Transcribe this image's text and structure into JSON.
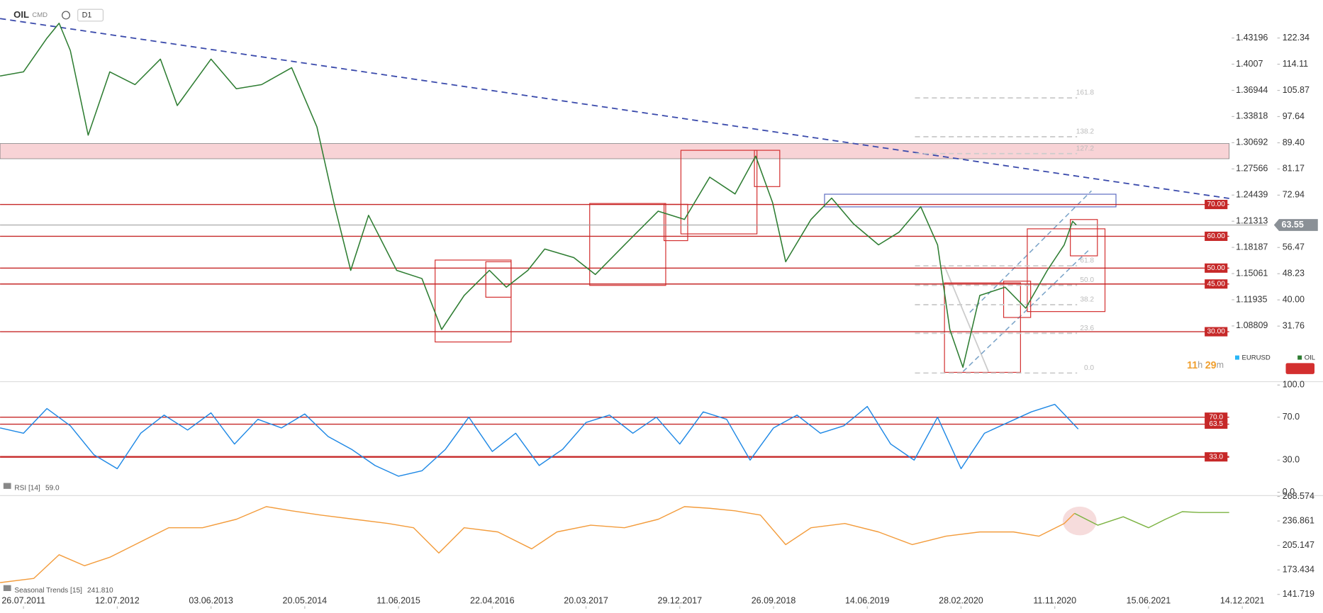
{
  "header": {
    "symbol": "OIL",
    "market": "CMD",
    "interval": "D1",
    "timer": [
      "11",
      "h",
      "29",
      "m"
    ]
  },
  "chart_data": [
    {
      "type": "line",
      "xlim": [
        -0.25,
        12.86
      ],
      "ylim": [
        14.83,
        134.29
      ],
      "yticks": [
        122.34,
        114.11,
        105.87,
        97.64,
        {
          "value": 89.4,
          "label": "89.40"
        },
        81.17,
        72.94,
        56.47,
        48.23,
        {
          "value": 40,
          "label": "40.00"
        },
        31.76
      ],
      "y2lim": [
        1.02358,
        1.47734
      ],
      "y2ticks": [
        1.43196,
        1.4007,
        1.36944,
        1.33818,
        1.30692,
        1.27566,
        1.24439,
        1.21313,
        1.18187,
        1.15061,
        1.11935,
        1.08809
      ],
      "series": [
        {
          "name": "OIL",
          "color": "#2e7d32",
          "x": [
            -0.25,
            0,
            0.25,
            0.38,
            0.5,
            0.69,
            0.92,
            1.19,
            1.46,
            1.64,
            2.0,
            2.27,
            2.54,
            2.86,
            3.13,
            3.31,
            3.49,
            3.68,
            3.98,
            4.25,
            4.46,
            4.7,
            4.97,
            5.15,
            5.38,
            5.56,
            5.87,
            6.1,
            6.41,
            6.77,
            7.05,
            7.32,
            7.59,
            7.81,
            7.99,
            8.13,
            8.4,
            8.62,
            8.85,
            9.12,
            9.34,
            9.57,
            9.75,
            9.88,
            10.02,
            10.2,
            10.47,
            10.69,
            10.92,
            11.1,
            11.19,
            11.23
          ],
          "values": [
            110.4,
            111.7,
            122.3,
            127,
            118.4,
            91.8,
            111.7,
            107.7,
            115.7,
            101.1,
            115.7,
            106.4,
            107.7,
            113.0,
            94.4,
            70.6,
            49.3,
            66.6,
            49.3,
            46.7,
            30.7,
            41.4,
            49.3,
            44.0,
            49.3,
            56.0,
            53.3,
            48.0,
            57.3,
            67.9,
            65.3,
            78.6,
            73.3,
            85.2,
            70.6,
            52.0,
            65.3,
            72.0,
            64.0,
            57.3,
            61.3,
            69.3,
            57.3,
            30.7,
            18.8,
            41.4,
            44.0,
            37.4,
            49.3,
            57.3,
            64.7,
            63.55
          ]
        }
      ],
      "overlay": {
        "name": "EURUSD",
        "color": "#29b6f6"
      },
      "current": 63.55,
      "levels": [
        {
          "value": 70,
          "label": "70.00"
        },
        {
          "value": 60,
          "label": "60.00"
        },
        {
          "value": 50,
          "label": "50.00"
        },
        {
          "value": 45,
          "label": "45.00"
        },
        {
          "value": 30,
          "label": "30.00"
        }
      ],
      "level_color": "#c62828",
      "fib_levels": [
        {
          "value": 103.5,
          "label": "161.8"
        },
        {
          "value": 91.3,
          "label": "138.2"
        },
        {
          "value": 86.0,
          "label": "127.2"
        },
        {
          "value": 50.7,
          "label": "61.8"
        },
        {
          "value": 44.6,
          "label": "50.0"
        },
        {
          "value": 38.5,
          "label": "38.2"
        },
        {
          "value": 29.5,
          "label": "23.6"
        },
        {
          "value": 17.0,
          "label": "0.0"
        }
      ]
    },
    {
      "type": "line",
      "title": "RSI [14]",
      "current": {
        "value": 59,
        "label": "59.0"
      },
      "xlim": [
        -0.25,
        12.86
      ],
      "ylim": [
        0,
        100
      ],
      "yticks": [
        {
          "value": 100,
          "label": "100.0"
        },
        {
          "value": 70,
          "label": "70.0"
        },
        {
          "value": 30,
          "label": "30.0"
        },
        {
          "value": 0,
          "label": "0.0"
        }
      ],
      "levels": [
        {
          "value": 70,
          "label": "70.0"
        },
        {
          "value": 63.5,
          "label": "63.5"
        },
        {
          "value": 33,
          "label": "33.0"
        }
      ],
      "level_color": "#c62828",
      "series": [
        {
          "color": "#1e88e5",
          "x": [
            -0.25,
            0,
            0.25,
            0.5,
            0.75,
            1,
            1.25,
            1.5,
            1.75,
            2,
            2.25,
            2.5,
            2.75,
            3,
            3.25,
            3.5,
            3.75,
            4,
            4.25,
            4.5,
            4.75,
            5,
            5.25,
            5.5,
            5.75,
            6,
            6.25,
            6.5,
            6.75,
            7,
            7.25,
            7.5,
            7.75,
            8,
            8.25,
            8.5,
            8.75,
            9,
            9.25,
            9.5,
            9.75,
            10,
            10.25,
            10.5,
            10.75,
            11,
            11.25
          ],
          "values": [
            60,
            55,
            78,
            62,
            35,
            22,
            55,
            72,
            58,
            74,
            45,
            68,
            60,
            73,
            52,
            40,
            25,
            15,
            20,
            40,
            70,
            38,
            55,
            25,
            40,
            65,
            72,
            55,
            70,
            45,
            75,
            68,
            30,
            60,
            72,
            55,
            62,
            80,
            45,
            30,
            70,
            22,
            55,
            65,
            75,
            82,
            59
          ]
        }
      ]
    },
    {
      "type": "line",
      "title": "Seasonal  Trends [15]",
      "current": {
        "value": 241.81,
        "label": "241.810"
      },
      "xlim": [
        -0.25,
        12.86
      ],
      "ylim": [
        126.4,
        270.76
      ],
      "yticks": [
        268.574,
        236.861,
        205.147,
        173.434,
        141.719
      ],
      "xticks": [
        {
          "value": 0,
          "label": "26.07.2011"
        },
        {
          "value": 1,
          "label": "12.07.2012"
        },
        {
          "value": 2,
          "label": "03.06.2013"
        },
        {
          "value": 3,
          "label": "20.05.2014"
        },
        {
          "value": 4,
          "label": "11.06.2015"
        },
        {
          "value": 5,
          "label": "22.04.2016"
        },
        {
          "value": 6,
          "label": "20.03.2017"
        },
        {
          "value": 7,
          "label": "29.12.2017"
        },
        {
          "value": 8,
          "label": "26.09.2018"
        },
        {
          "value": 9,
          "label": "14.06.2019"
        },
        {
          "value": 10,
          "label": "28.02.2020"
        },
        {
          "value": 11,
          "label": "11.11.2020"
        },
        {
          "value": 12,
          "label": "15.06.2021"
        },
        {
          "value": 13,
          "label": "14.12.2021"
        }
      ],
      "series": [
        {
          "color": "#f39c3c",
          "x": [
            -0.25,
            0.11,
            0.38,
            0.65,
            0.92,
            1.19,
            1.55,
            1.91,
            2.27,
            2.59,
            2.86,
            3.17,
            3.53,
            3.89,
            4.16,
            4.43,
            4.7,
            5.06,
            5.42,
            5.69,
            6.05,
            6.41,
            6.77,
            7.05,
            7.32,
            7.59,
            7.86,
            8.13,
            8.4,
            8.76,
            9.12,
            9.48,
            9.84,
            10.2,
            10.56,
            10.83,
            11.1,
            11.21
          ],
          "values": [
            157.0,
            162.5,
            193.1,
            178.9,
            189.8,
            206.2,
            228.1,
            228.1,
            239.0,
            255.4,
            250.0,
            244.5,
            239.0,
            233.6,
            228.1,
            195.3,
            228.1,
            222.6,
            200.8,
            222.6,
            231.4,
            228.1,
            239.0,
            255.4,
            253.3,
            250.0,
            244.5,
            206.2,
            228.1,
            233.6,
            222.6,
            206.2,
            217.2,
            222.6,
            222.6,
            217.2,
            233.6,
            246.7
          ]
        },
        {
          "color": "#7cb342",
          "x": [
            11.21,
            11.46,
            11.73,
            12.0,
            12.18,
            12.36,
            12.54,
            12.86
          ],
          "values": [
            246.7,
            231.4,
            242.3,
            228.1,
            239.0,
            248.9,
            247.8,
            247.8
          ]
        }
      ]
    }
  ]
}
